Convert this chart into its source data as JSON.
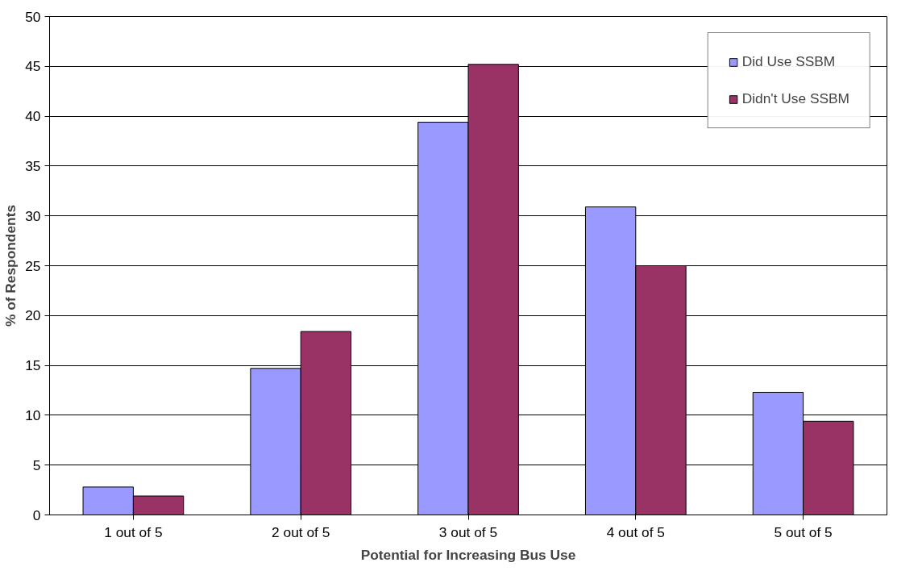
{
  "chart_data": {
    "type": "bar",
    "xlabel": "Potential for Increasing Bus Use",
    "ylabel": "% of Respondents",
    "categories": [
      "1 out of 5",
      "2 out of 5",
      "3 out of 5",
      "4 out of 5",
      "5 out of 5"
    ],
    "series": [
      {
        "name": "Did Use SSBM",
        "color": "#9999ff",
        "values": [
          2.8,
          14.7,
          39.4,
          30.9,
          12.3
        ]
      },
      {
        "name": "Didn't Use SSBM",
        "color": "#993366",
        "values": [
          1.9,
          18.4,
          45.2,
          25.0,
          9.4
        ]
      }
    ],
    "ylim": [
      0,
      50
    ],
    "yticks": [
      0,
      5,
      10,
      15,
      20,
      25,
      30,
      35,
      40,
      45,
      50
    ],
    "grid": "y",
    "legend": "top right"
  }
}
